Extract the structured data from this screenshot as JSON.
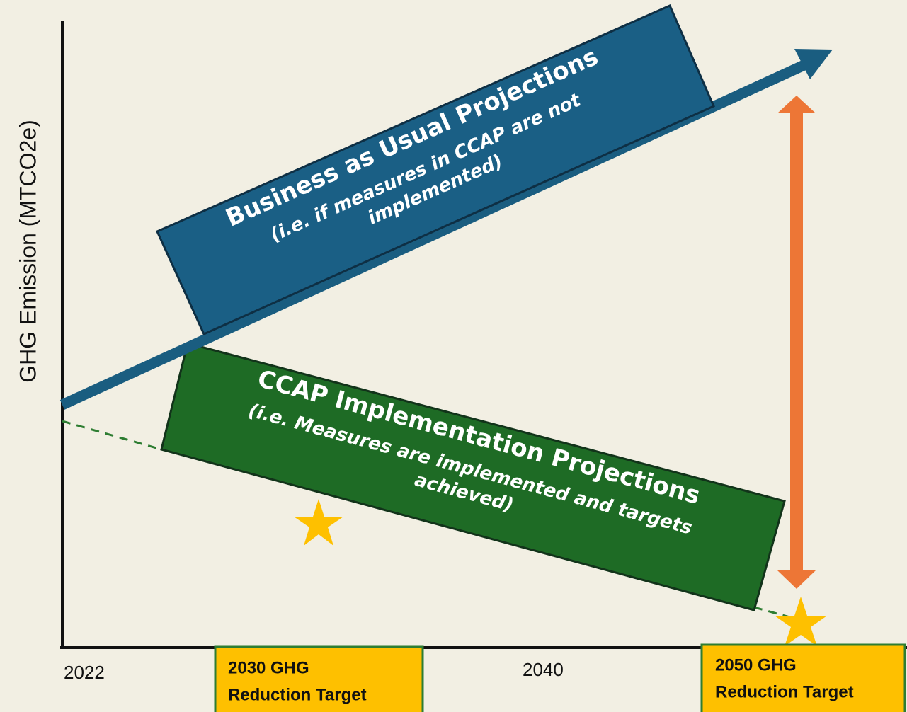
{
  "y_axis_label": "GHG Emission (MTCO2e)",
  "x_labels": [
    "2022",
    "2040"
  ],
  "business_as_usual": {
    "title": "Business as Usual Projections",
    "subtitle_lines": [
      "(i.e. if measures in CCAP are not",
      "implemented)"
    ]
  },
  "ccap_implementation": {
    "title": "CCAP Implementation Projections",
    "subtitle_lines": [
      "(i.e. Measures are implemented and targets",
      "achieved)"
    ]
  },
  "targets": [
    {
      "lines": [
        "2030 GHG",
        "Reduction Target"
      ]
    },
    {
      "lines": [
        "2050 GHG",
        "Reduction Target"
      ]
    }
  ]
}
